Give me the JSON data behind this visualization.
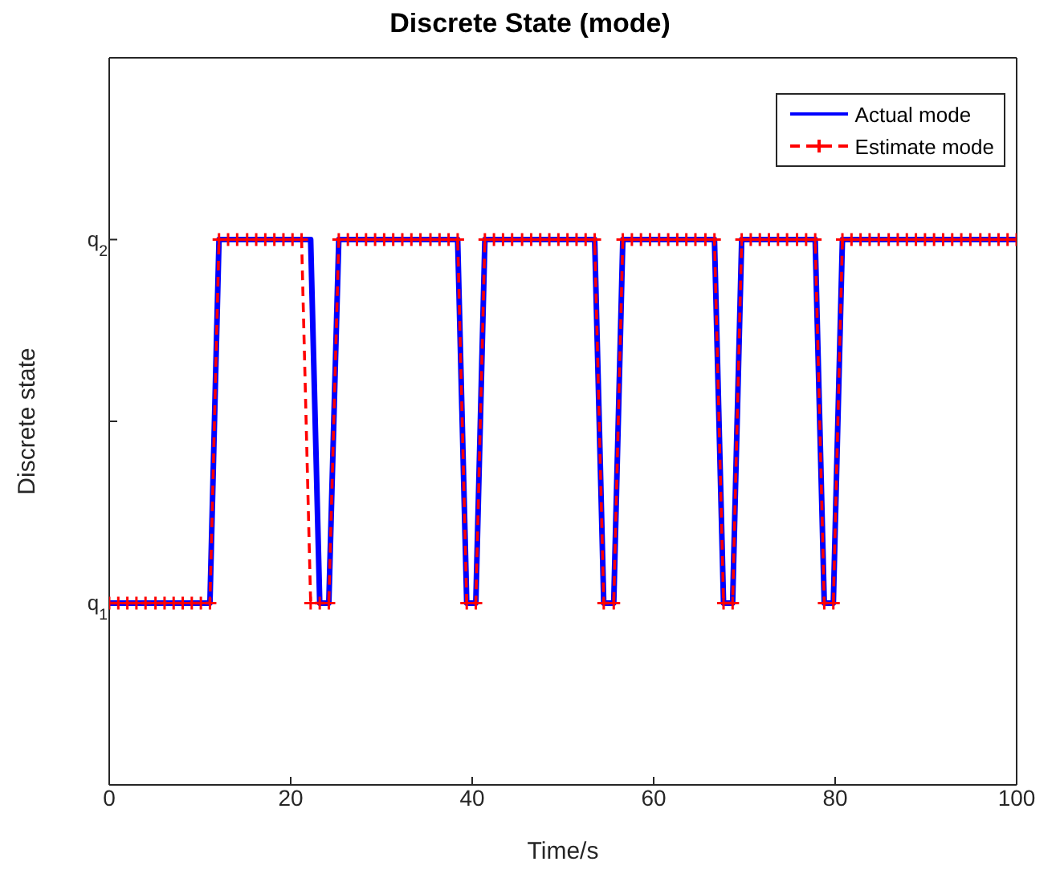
{
  "chart_data": {
    "type": "line",
    "title": "Discrete State (mode)",
    "xlabel": "Time/s",
    "ylabel": "Discrete state",
    "x": [
      0,
      1,
      2,
      3,
      4,
      5.1,
      6.1,
      7.1,
      8.1,
      9.1,
      10.1,
      11.1,
      12.1,
      13.1,
      14.1,
      15.2,
      16.2,
      17.2,
      18.2,
      19.2,
      20.2,
      21.2,
      22.2,
      23.2,
      24.2,
      25.3,
      26.3,
      27.3,
      28.3,
      29.3,
      30.3,
      31.3,
      32.3,
      33.3,
      34.3,
      35.4,
      36.4,
      37.4,
      38.4,
      39.4,
      40.4,
      41.4,
      42.4,
      43.4,
      44.4,
      45.5,
      46.5,
      47.5,
      48.5,
      49.5,
      50.5,
      51.5,
      52.5,
      53.5,
      54.5,
      55.6,
      56.6,
      57.6,
      58.6,
      59.6,
      60.6,
      61.6,
      62.6,
      63.6,
      64.6,
      65.7,
      66.7,
      67.7,
      68.7,
      69.7,
      70.7,
      71.7,
      72.7,
      73.7,
      74.7,
      75.8,
      76.8,
      77.8,
      78.8,
      79.8,
      80.8,
      81.8,
      82.8,
      83.8,
      84.8,
      85.9,
      86.9,
      87.9,
      88.9,
      89.9,
      90.9,
      91.9,
      92.9,
      93.9,
      94.9,
      96,
      97,
      98,
      99,
      100
    ],
    "series": [
      {
        "name": "Actual mode",
        "color": "#0000ff",
        "line_style": "solid",
        "marker": "none",
        "values": [
          1,
          1,
          1,
          1,
          1,
          1,
          1,
          1,
          1,
          1,
          1,
          1,
          2,
          2,
          2,
          2,
          2,
          2,
          2,
          2,
          2,
          2,
          2,
          1,
          1,
          2,
          2,
          2,
          2,
          2,
          2,
          2,
          2,
          2,
          2,
          2,
          2,
          2,
          2,
          1,
          1,
          2,
          2,
          2,
          2,
          2,
          2,
          2,
          2,
          2,
          2,
          2,
          2,
          2,
          1,
          1,
          2,
          2,
          2,
          2,
          2,
          2,
          2,
          2,
          2,
          2,
          2,
          1,
          1,
          2,
          2,
          2,
          2,
          2,
          2,
          2,
          2,
          2,
          1,
          1,
          2,
          2,
          2,
          2,
          2,
          2,
          2,
          2,
          2,
          2,
          2,
          2,
          2,
          2,
          2,
          2,
          2,
          2,
          2,
          2
        ]
      },
      {
        "name": "Estimate mode",
        "color": "#ff0000",
        "line_style": "dashed",
        "marker": "cross",
        "values": [
          1,
          1,
          1,
          1,
          1,
          1,
          1,
          1,
          1,
          1,
          1,
          1,
          2,
          2,
          2,
          2,
          2,
          2,
          2,
          2,
          2,
          2,
          1,
          1,
          1,
          2,
          2,
          2,
          2,
          2,
          2,
          2,
          2,
          2,
          2,
          2,
          2,
          2,
          2,
          1,
          1,
          2,
          2,
          2,
          2,
          2,
          2,
          2,
          2,
          2,
          2,
          2,
          2,
          2,
          1,
          1,
          2,
          2,
          2,
          2,
          2,
          2,
          2,
          2,
          2,
          2,
          2,
          1,
          1,
          2,
          2,
          2,
          2,
          2,
          2,
          2,
          2,
          2,
          1,
          1,
          2,
          2,
          2,
          2,
          2,
          2,
          2,
          2,
          2,
          2,
          2,
          2,
          2,
          2,
          2,
          2,
          2,
          2,
          2,
          2
        ]
      }
    ],
    "xlim": [
      0,
      100
    ],
    "xticks": [
      0,
      20,
      40,
      60,
      80,
      100
    ],
    "ylim": [
      0.5,
      2.5
    ],
    "yticks": [
      {
        "value": 1,
        "label": "q$_{1}$"
      },
      {
        "value": 1.5,
        "label": null
      },
      {
        "value": 2,
        "label": "q$_{2}$"
      }
    ],
    "grid": false,
    "legend": "top right"
  }
}
